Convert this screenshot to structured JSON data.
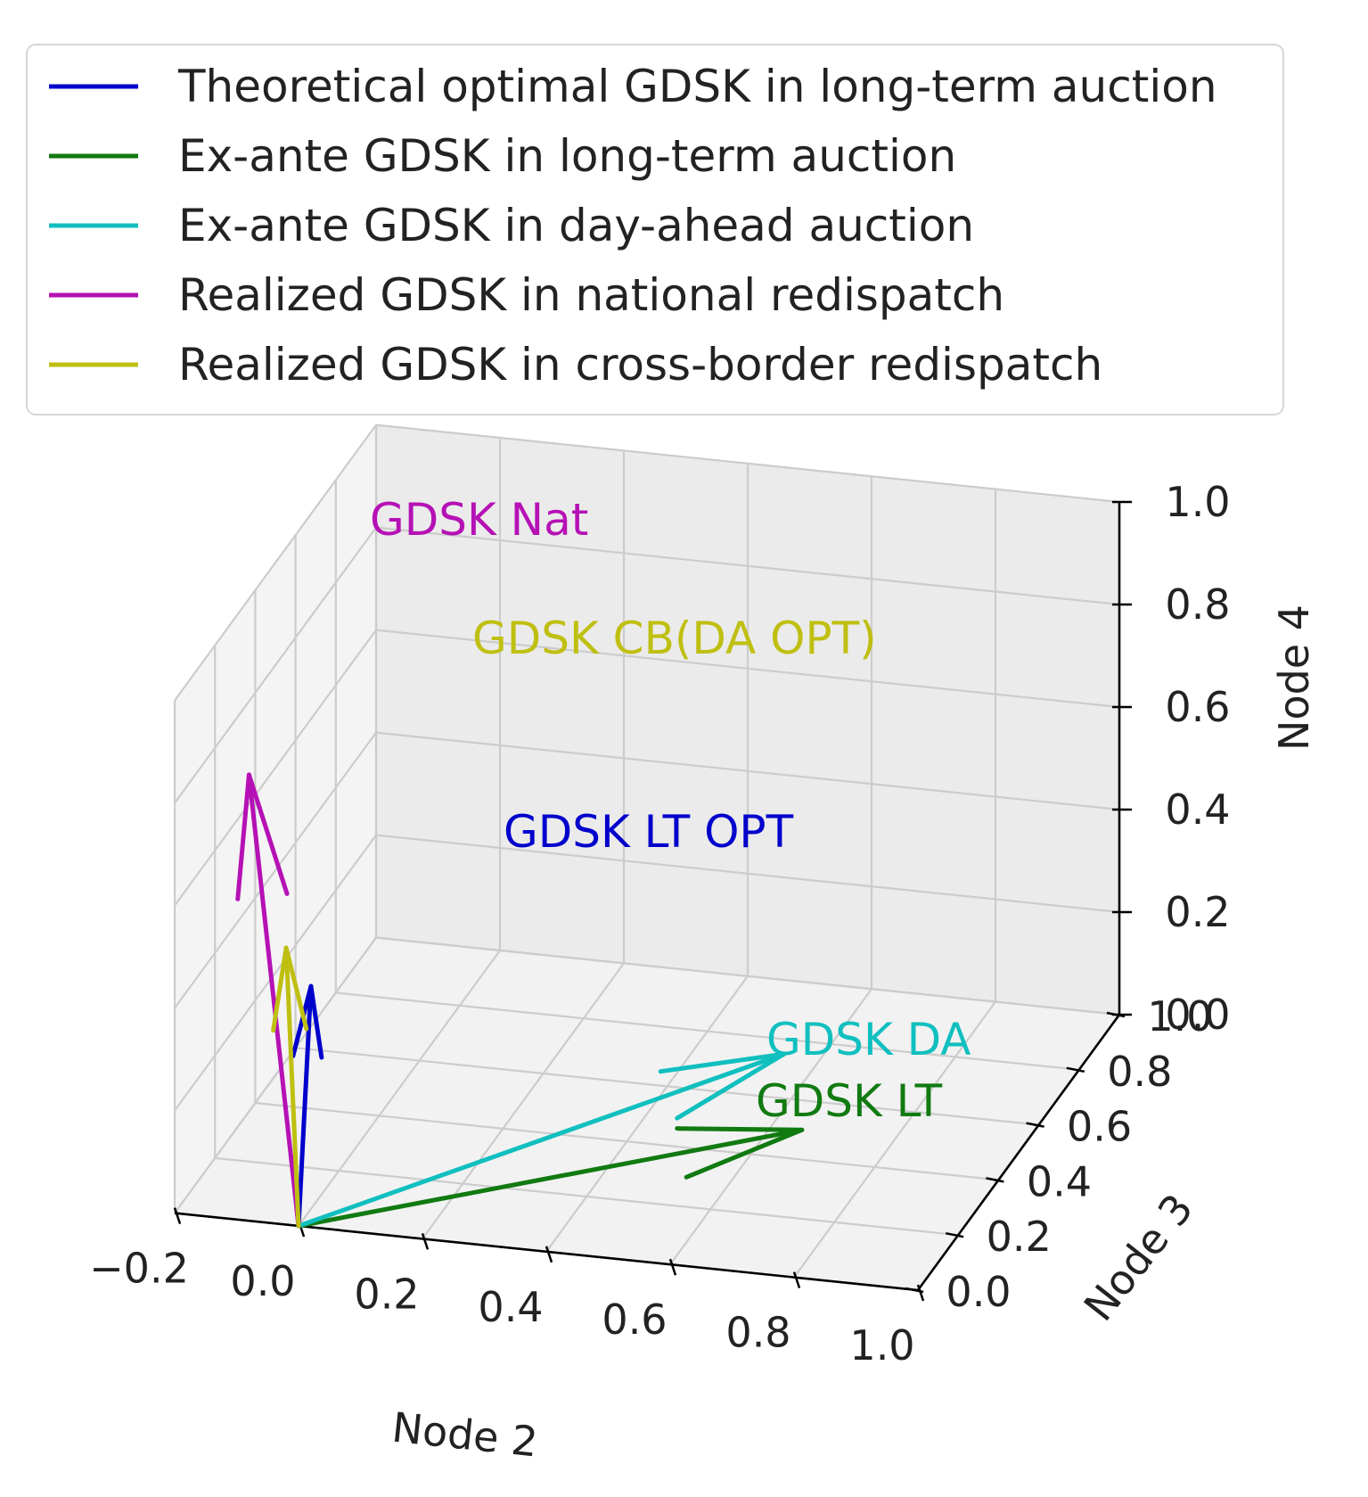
{
  "chart_data": {
    "type": "3d-quiver",
    "xlabel": "Node 2",
    "ylabel": "Node 3",
    "zlabel": "Node 4",
    "xlim": [
      -0.2,
      1.0
    ],
    "ylim": [
      0.0,
      1.0
    ],
    "zlim": [
      0.0,
      1.0
    ],
    "x_ticks": [
      "−0.2",
      "0.0",
      "0.2",
      "0.4",
      "0.6",
      "0.8",
      "1.0"
    ],
    "y_ticks": [
      "0.0",
      "0.2",
      "0.4",
      "0.6",
      "0.8",
      "1.0"
    ],
    "z_ticks": [
      "0.0",
      "0.2",
      "0.4",
      "0.6",
      "0.8",
      "1.0"
    ],
    "grid": true,
    "legend_position": "top",
    "series": [
      {
        "name": "Theoretical optimal GDSK in long-term auction",
        "label": "GDSK LT OPT",
        "color": "#0000cc",
        "vector": [
          0.02,
          0.0,
          0.47
        ]
      },
      {
        "name": "Ex-ante GDSK in long-term auction",
        "label": "GDSK LT",
        "color": "#117a11",
        "vector": [
          0.65,
          0.5,
          0.0
        ]
      },
      {
        "name": "Ex-ante GDSK in day-ahead auction",
        "label": "GDSK DA",
        "color": "#11bfbf",
        "vector": [
          0.54,
          0.75,
          0.0
        ]
      },
      {
        "name": "Realized GDSK in national redispatch",
        "label": "GDSK Nat",
        "color": "#b511b5",
        "vector": [
          -0.08,
          0.0,
          0.87
        ]
      },
      {
        "name": "Realized GDSK in cross-border redispatch",
        "label": "GDSK CB(DA OPT)",
        "color": "#bfbf11",
        "vector": [
          -0.02,
          0.0,
          0.54
        ]
      }
    ]
  }
}
